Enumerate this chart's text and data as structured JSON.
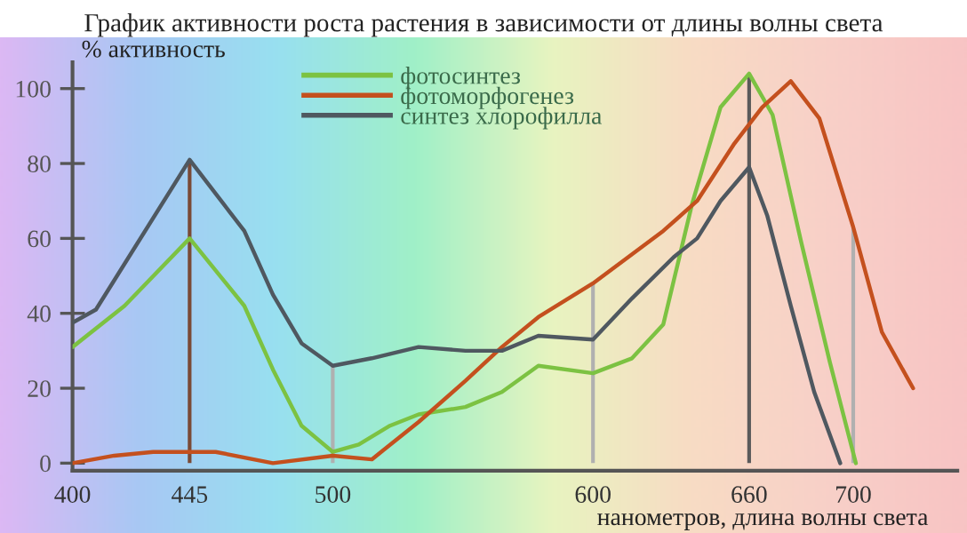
{
  "chart_data": {
    "type": "line",
    "title": "График активности роста растения в зависимости от длины волны света",
    "xlabel": "нанометров, длина волны света",
    "ylabel": "% активность",
    "xlim": [
      400,
      740
    ],
    "xticks": [
      400,
      445,
      500,
      600,
      660,
      700
    ],
    "ylim": [
      -2,
      107
    ],
    "yticks": [
      0,
      20,
      40,
      60,
      80,
      100
    ],
    "grid": false,
    "legend": "top",
    "marker": "none",
    "line_style": "solid",
    "series": [
      {
        "name": "фотосинтез",
        "color": "#7cc242",
        "x": [
          400,
          420,
          445,
          466,
          477,
          488,
          500,
          510,
          522,
          533,
          551,
          565,
          579,
          600,
          615,
          627,
          638,
          649,
          660,
          669,
          680,
          691,
          701
        ],
        "values": [
          31,
          42,
          60,
          42,
          25,
          10,
          3,
          5,
          10,
          13,
          15,
          19,
          26,
          24,
          28,
          37,
          69,
          95,
          104,
          93,
          59,
          27,
          0
        ]
      },
      {
        "name": "фотоморфогенез",
        "color": "#c4501e",
        "x": [
          400,
          416,
          431,
          445,
          455,
          477,
          500,
          515,
          533,
          551,
          565,
          579,
          600,
          627,
          640,
          654,
          665,
          676,
          687,
          700,
          711,
          723
        ],
        "values": [
          0,
          2,
          3,
          3,
          3,
          0,
          2,
          1,
          11,
          22,
          31,
          39,
          48,
          62,
          70,
          85,
          95,
          102,
          92,
          63,
          35,
          20
        ]
      },
      {
        "name": "синтез хлорофилла",
        "color": "#4f5860",
        "x": [
          400,
          409,
          445,
          466,
          477,
          488,
          500,
          515,
          533,
          551,
          565,
          579,
          600,
          615,
          631,
          640,
          649,
          660,
          667,
          676,
          685,
          695
        ],
        "values": [
          37.5,
          41,
          81,
          62,
          45,
          32,
          26,
          28,
          31,
          30,
          30,
          34,
          33,
          44,
          55,
          60,
          70,
          79,
          66,
          42,
          19,
          0
        ]
      }
    ],
    "ref_lines": [
      {
        "axis": "x",
        "value": 445,
        "color": "#7a4a36"
      },
      {
        "axis": "x",
        "value": 500,
        "color": "#b0b0b0"
      },
      {
        "axis": "x",
        "value": 600,
        "color": "#b0b0b0"
      },
      {
        "axis": "x",
        "value": 660,
        "color": "#5a5a5a"
      },
      {
        "axis": "x",
        "value": 700,
        "color": "#b0b0b0"
      }
    ]
  }
}
